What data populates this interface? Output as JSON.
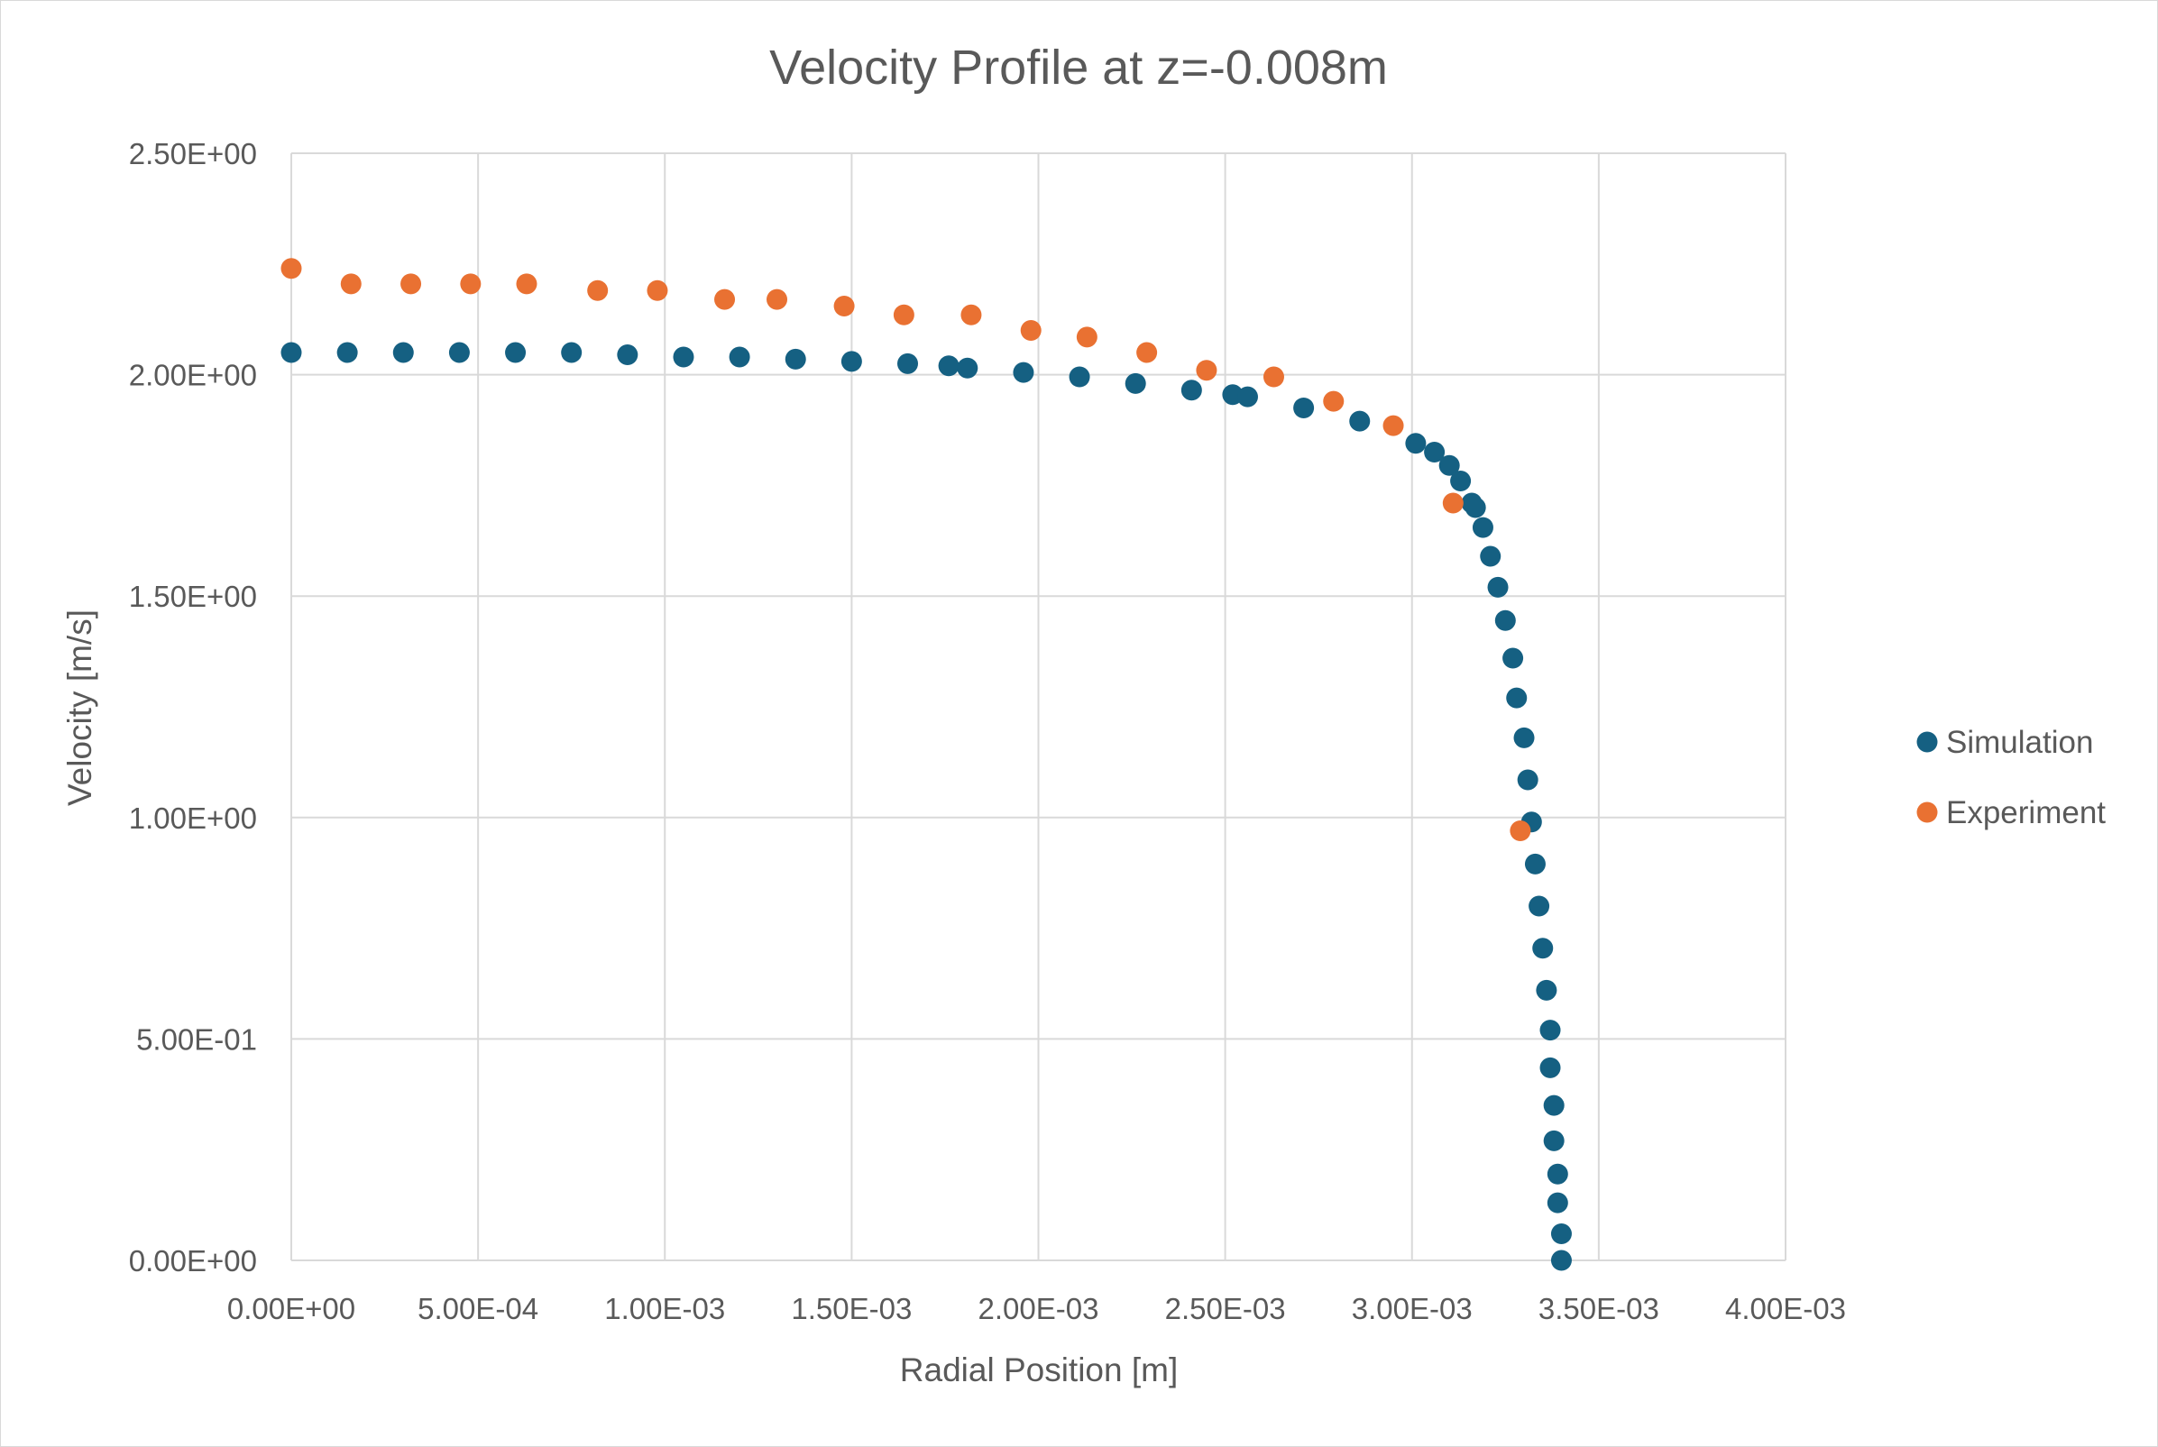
{
  "chart_data": {
    "type": "scatter",
    "title": "Velocity Profile at z=-0.008m",
    "xlabel": "Radial Position [m]",
    "ylabel": "Velocity [m/s]",
    "xlim": [
      0,
      0.004
    ],
    "ylim": [
      0,
      2.5
    ],
    "x_ticks": [
      0,
      0.0005,
      0.001,
      0.0015,
      0.002,
      0.0025,
      0.003,
      0.0035,
      0.004
    ],
    "x_tick_labels": [
      "0.00E+00",
      "5.00E-04",
      "1.00E-03",
      "1.50E-03",
      "2.00E-03",
      "2.50E-03",
      "3.00E-03",
      "3.50E-03",
      "4.00E-03"
    ],
    "y_ticks": [
      0,
      0.5,
      1.0,
      1.5,
      2.0,
      2.5
    ],
    "y_tick_labels": [
      "0.00E+00",
      "5.00E-01",
      "1.00E+00",
      "1.50E+00",
      "2.00E+00",
      "2.50E+00"
    ],
    "grid": true,
    "legend_position": "right",
    "series": [
      {
        "name": "Simulation",
        "color": "#156082",
        "points": [
          [
            0.0,
            2.05
          ],
          [
            0.00015,
            2.05
          ],
          [
            0.0003,
            2.05
          ],
          [
            0.00045,
            2.05
          ],
          [
            0.0006,
            2.05
          ],
          [
            0.00075,
            2.05
          ],
          [
            0.0009,
            2.045
          ],
          [
            0.00105,
            2.04
          ],
          [
            0.0012,
            2.04
          ],
          [
            0.00135,
            2.035
          ],
          [
            0.0015,
            2.03
          ],
          [
            0.00165,
            2.025
          ],
          [
            0.00176,
            2.02
          ],
          [
            0.00181,
            2.015
          ],
          [
            0.00196,
            2.005
          ],
          [
            0.00211,
            1.995
          ],
          [
            0.00226,
            1.98
          ],
          [
            0.00241,
            1.965
          ],
          [
            0.00252,
            1.955
          ],
          [
            0.00256,
            1.95
          ],
          [
            0.00271,
            1.925
          ],
          [
            0.00286,
            1.895
          ],
          [
            0.00301,
            1.845
          ],
          [
            0.00306,
            1.825
          ],
          [
            0.0031,
            1.795
          ],
          [
            0.00313,
            1.76
          ],
          [
            0.00316,
            1.71
          ],
          [
            0.00317,
            1.7
          ],
          [
            0.00319,
            1.655
          ],
          [
            0.00321,
            1.59
          ],
          [
            0.00323,
            1.52
          ],
          [
            0.00325,
            1.445
          ],
          [
            0.00327,
            1.36
          ],
          [
            0.00328,
            1.27
          ],
          [
            0.0033,
            1.18
          ],
          [
            0.00331,
            1.085
          ],
          [
            0.00332,
            0.99
          ],
          [
            0.00333,
            0.895
          ],
          [
            0.00334,
            0.8
          ],
          [
            0.00335,
            0.705
          ],
          [
            0.00336,
            0.61
          ],
          [
            0.00337,
            0.52
          ],
          [
            0.00337,
            0.435
          ],
          [
            0.00338,
            0.35
          ],
          [
            0.00338,
            0.27
          ],
          [
            0.00339,
            0.195
          ],
          [
            0.00339,
            0.13
          ],
          [
            0.0034,
            0.06
          ],
          [
            0.0034,
            0.0
          ]
        ]
      },
      {
        "name": "Experiment",
        "color": "#E97132",
        "points": [
          [
            0.0,
            2.24
          ],
          [
            0.00016,
            2.205
          ],
          [
            0.00032,
            2.205
          ],
          [
            0.00048,
            2.205
          ],
          [
            0.00063,
            2.205
          ],
          [
            0.00082,
            2.19
          ],
          [
            0.00098,
            2.19
          ],
          [
            0.00116,
            2.17
          ],
          [
            0.0013,
            2.17
          ],
          [
            0.00148,
            2.155
          ],
          [
            0.00164,
            2.135
          ],
          [
            0.00182,
            2.135
          ],
          [
            0.00198,
            2.1
          ],
          [
            0.00213,
            2.085
          ],
          [
            0.00229,
            2.05
          ],
          [
            0.00245,
            2.01
          ],
          [
            0.00263,
            1.995
          ],
          [
            0.00279,
            1.94
          ],
          [
            0.00295,
            1.885
          ],
          [
            0.00311,
            1.71
          ],
          [
            0.00329,
            0.97
          ]
        ]
      }
    ]
  }
}
